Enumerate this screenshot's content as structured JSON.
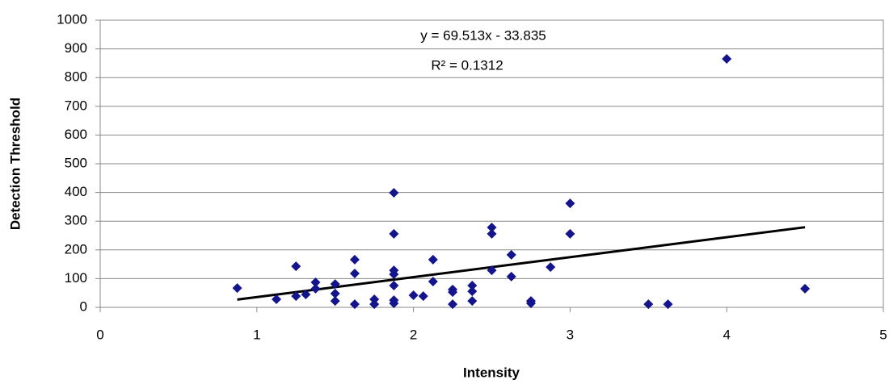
{
  "chart_data": {
    "type": "scatter",
    "x_label": "Intensity",
    "y_label": "Detection Threshold",
    "annotations": [
      "y = 69.513x - 33.835",
      "R² = 0.1312"
    ],
    "color": "#14148c",
    "trendline_color": "#000000",
    "grid": true,
    "xlim": [
      0,
      5
    ],
    "xticks": [
      0,
      1,
      2,
      3,
      4,
      5
    ],
    "ylim": [
      0,
      1000
    ],
    "yticks": [
      0,
      100,
      200,
      300,
      400,
      500,
      600,
      700,
      800,
      900,
      1000
    ],
    "x": [
      0.875,
      1.125,
      1.25,
      1.25,
      1.3125,
      1.375,
      1.375,
      1.5,
      1.5,
      1.5,
      1.625,
      1.625,
      1.625,
      1.75,
      1.75,
      1.875,
      1.875,
      1.875,
      1.875,
      1.875,
      1.875,
      1.875,
      2.0,
      2.0625,
      2.125,
      2.125,
      2.25,
      2.25,
      2.25,
      2.375,
      2.375,
      2.375,
      2.5,
      2.5,
      2.5,
      2.625,
      2.625,
      2.75,
      2.75,
      2.875,
      3.0,
      3.0,
      3.5,
      3.625,
      4.0,
      4.5
    ],
    "y": [
      67,
      28,
      143,
      39,
      45,
      87,
      65,
      81,
      48,
      22,
      166,
      118,
      11,
      28,
      11,
      399,
      256,
      129,
      115,
      76,
      25,
      14,
      42,
      39,
      166,
      90,
      62,
      53,
      11,
      76,
      56,
      22,
      278,
      256,
      129,
      183,
      107,
      22,
      14,
      140,
      362,
      256,
      11,
      11,
      865,
      65
    ]
  }
}
